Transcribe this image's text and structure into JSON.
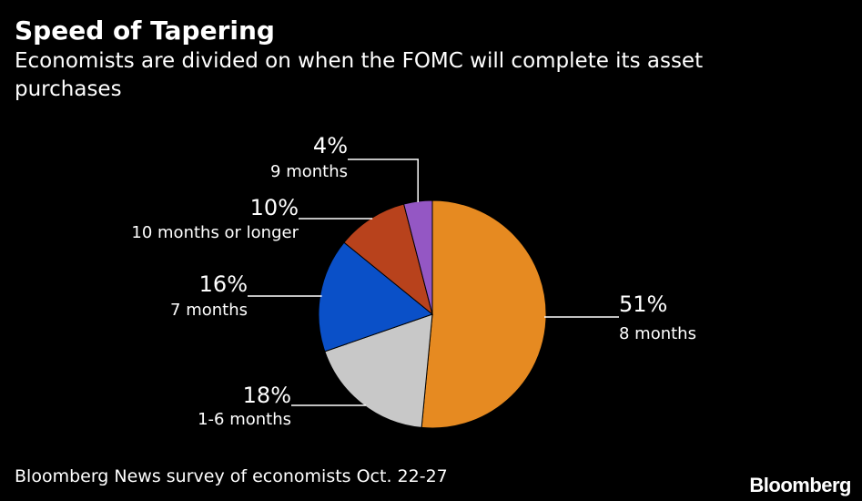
{
  "header": {
    "title": "Speed of Tapering",
    "subtitle": "Economists are divided on when the FOMC will complete its asset purchases"
  },
  "chart_data": {
    "type": "pie",
    "title": "Speed of Tapering",
    "subtitle": "Economists are divided on when the FOMC will complete its asset purchases",
    "slices": [
      {
        "label": "8 months",
        "value": 51,
        "value_label": "51%",
        "color": "#e68a21"
      },
      {
        "label": "1-6 months",
        "value": 18,
        "value_label": "18%",
        "color": "#c8c8c8"
      },
      {
        "label": "7 months",
        "value": 16,
        "value_label": "16%",
        "color": "#0a50c8"
      },
      {
        "label": "10 months or longer",
        "value": 10,
        "value_label": "10%",
        "color": "#b8421c"
      },
      {
        "label": "9 months",
        "value": 4,
        "value_label": "4%",
        "color": "#9457c4"
      }
    ],
    "legend": "none (direct labels)"
  },
  "footer": {
    "source": "Bloomberg News survey of economists Oct. 22-27",
    "brand": "Bloomberg"
  }
}
